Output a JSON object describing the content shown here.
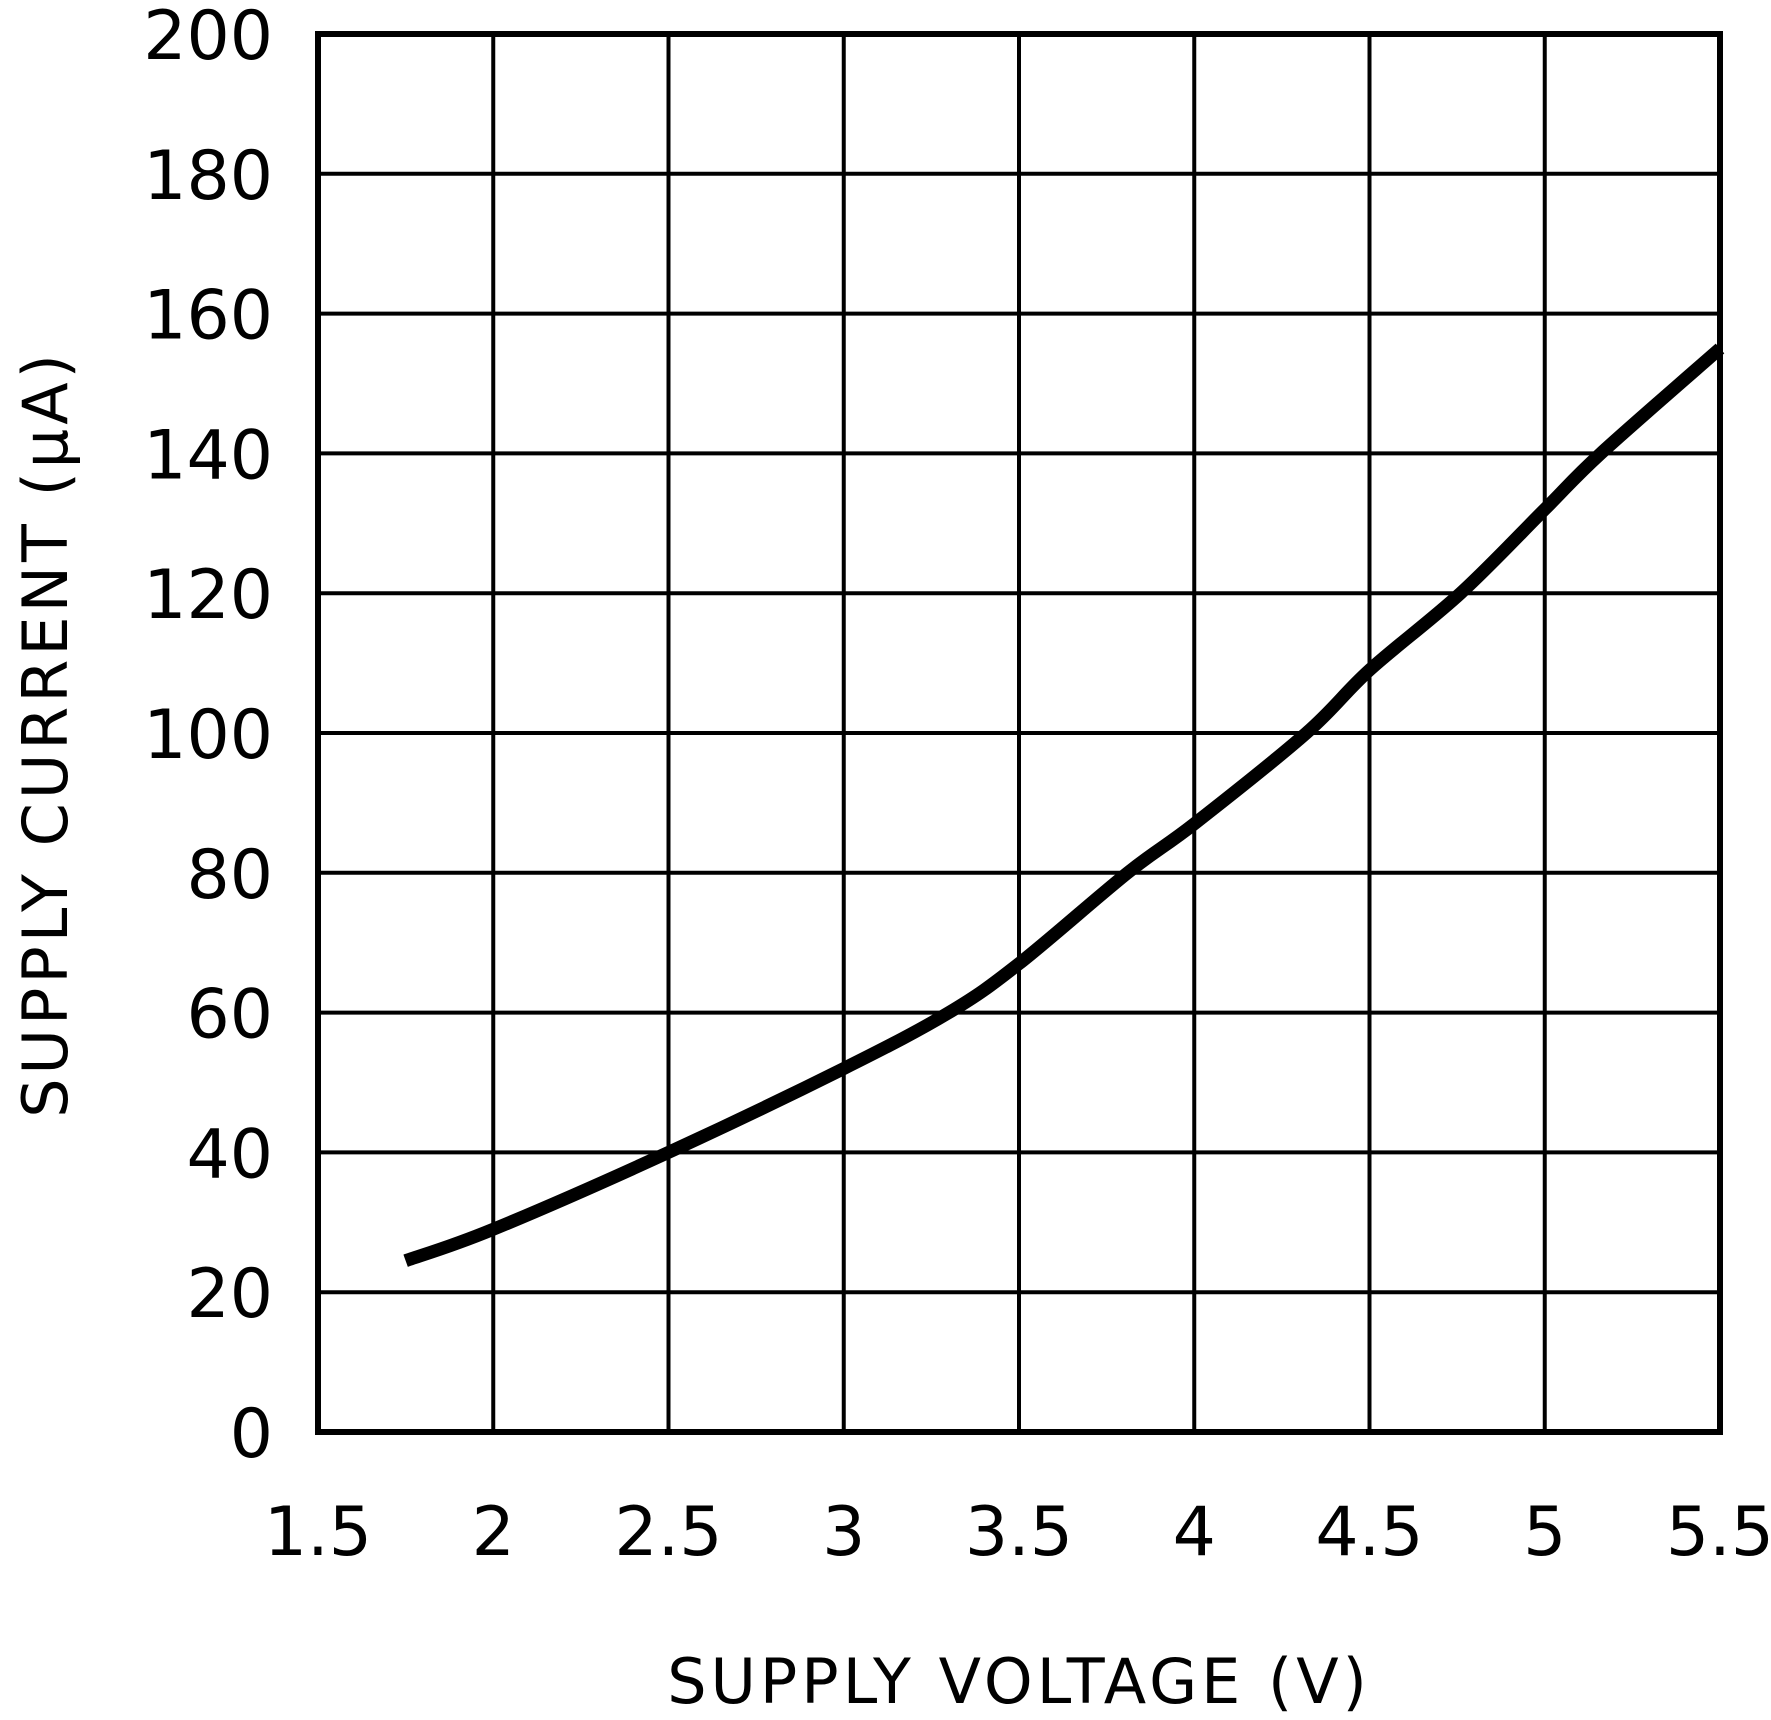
{
  "chart_data": {
    "type": "line",
    "title": "",
    "xlabel": "SUPPLY VOLTAGE (V)",
    "ylabel": "SUPPLY CURRENT (μA)",
    "xlim": [
      1.5,
      5.5
    ],
    "ylim": [
      0,
      200
    ],
    "xticks": [
      "1.5",
      "2",
      "2.5",
      "3",
      "3.5",
      "4",
      "4.5",
      "5",
      "5.5"
    ],
    "yticks": [
      "0",
      "20",
      "40",
      "60",
      "80",
      "100",
      "120",
      "140",
      "160",
      "180",
      "200"
    ],
    "grid": true,
    "series": [
      {
        "color": "#000000",
        "x": [
          1.75,
          2.0,
          2.5,
          3.0,
          3.3,
          3.5,
          3.81,
          4.0,
          4.32,
          4.5,
          4.76,
          5.0,
          5.16,
          5.5
        ],
        "y": [
          24.5,
          29,
          40,
          52,
          60,
          67,
          80,
          87,
          100,
          109,
          120,
          132,
          140,
          155
        ]
      }
    ]
  }
}
